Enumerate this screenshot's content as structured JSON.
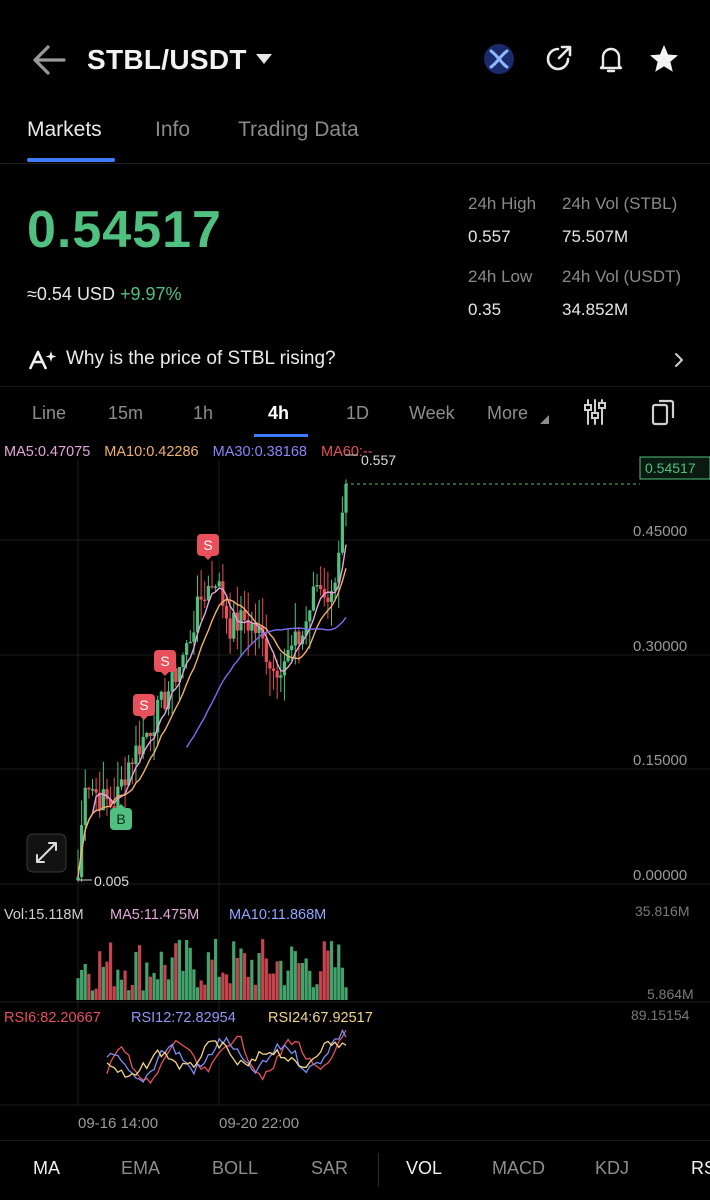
{
  "header": {
    "pair": "STBL/USDT"
  },
  "tabs": [
    "Markets",
    "Info",
    "Trading Data"
  ],
  "ticker": {
    "price": "0.54517",
    "usd_approx": "≈0.54",
    "usd_label": "USD",
    "change": "+9.97%",
    "high_label": "24h High",
    "high_value": "0.557",
    "vol_base_label": "24h Vol (STBL)",
    "vol_base_value": "75.507M",
    "low_label": "24h Low",
    "low_value": "0.35",
    "vol_quote_label": "24h Vol  (USDT)",
    "vol_quote_value": "34.852M"
  },
  "why_banner": "Why is the price of STBL rising?",
  "timeframes": [
    "Line",
    "15m",
    "1h",
    "4h",
    "1D",
    "Week",
    "More"
  ],
  "indicators": {
    "ma5": "MA5:0.47075",
    "ma10": "MA10:0.42286",
    "ma30": "MA30:0.38168",
    "ma60": "MA60:--",
    "vol": "Vol:15.118M",
    "vol_ma5": "MA5:11.475M",
    "vol_ma10": "MA10:11.868M",
    "rsi6": "RSI6:82.20667",
    "rsi12": "RSI12:72.82954",
    "rsi24": "RSI24:67.92517"
  },
  "chart_data": {
    "type": "candlestick",
    "y_ticks": [
      "0.45000",
      "0.30000",
      "0.15000",
      "0.00000"
    ],
    "ylim": [
      0.0,
      0.6
    ],
    "last_price_label": "0.54517",
    "high_marker": "0.557",
    "low_marker": "0.005",
    "vol_ticks": [
      "35.816M",
      "5.864M"
    ],
    "rsi_tick": "89.15154",
    "x_ticks": [
      "09-16 14:00",
      "09-20 22:00"
    ],
    "trade_markers": [
      "B",
      "S",
      "S",
      "S"
    ],
    "colors": {
      "up": "#4fc07f",
      "down": "#e8505b",
      "ma5": "#e3a6d9",
      "ma10": "#efb26a",
      "ma30": "#7b6cf6",
      "rsi6": "#e8505b",
      "rsi12": "#7f8cf2",
      "rsi24": "#f3d58a"
    }
  },
  "bottom_tabs": [
    "MA",
    "EMA",
    "BOLL",
    "SAR",
    "VOL",
    "MACD",
    "KDJ",
    "RS"
  ]
}
